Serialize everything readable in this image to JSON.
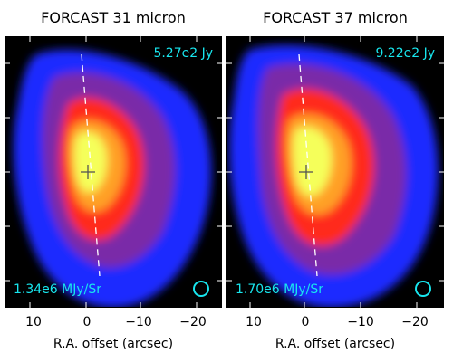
{
  "panels": [
    {
      "title": "FORCAST 31 micron",
      "total_flux": "5.27e2 Jy",
      "peak_brightness": "1.34e6 MJy/Sr",
      "x_ticks": [
        "10",
        "0",
        "−10",
        "−20"
      ],
      "x_label": "R.A. offset (arcsec)"
    },
    {
      "title": "FORCAST 37 micron",
      "total_flux": "9.22e2 Jy",
      "peak_brightness": "1.70e6 MJy/Sr",
      "x_ticks": [
        "10",
        "0",
        "−10",
        "−20"
      ],
      "x_label": "R.A. offset (arcsec)"
    }
  ],
  "colors": {
    "annotation": "#18e6ee",
    "background": "#000000",
    "faint": "#1a2cff",
    "mid": "#7a2aa8",
    "bright": "#ff2a1a",
    "peak": "#f5ff5a"
  }
}
